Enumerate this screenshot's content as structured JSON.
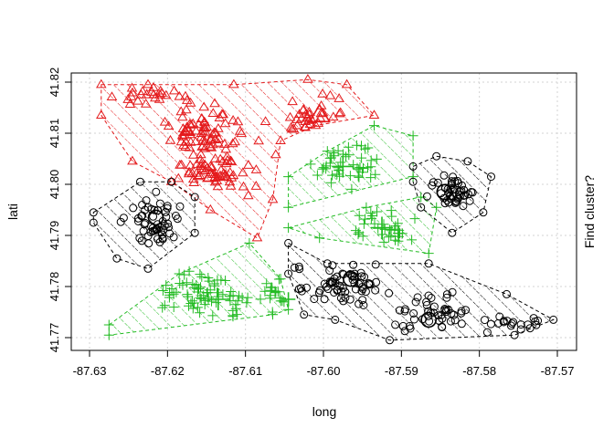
{
  "chart_data": {
    "type": "scatter",
    "title": "",
    "xlabel": "long",
    "ylabel": "lati",
    "right_label": "Find cluster?",
    "xlim": [
      -87.63,
      -87.57
    ],
    "ylim": [
      41.77,
      41.82
    ],
    "xticks": [
      -87.63,
      -87.62,
      -87.61,
      -87.6,
      -87.59,
      -87.58,
      -87.57
    ],
    "yticks": [
      41.77,
      41.78,
      41.79,
      41.8,
      41.81,
      41.82
    ],
    "xtick_labels": [
      "-87.63",
      "-87.62",
      "-87.61",
      "-87.60",
      "-87.59",
      "-87.58",
      "-87.57"
    ],
    "ytick_labels": [
      "41.77",
      "41.78",
      "41.79",
      "41.80",
      "41.81",
      "41.82"
    ],
    "grid": true,
    "legend": "none",
    "clusters": [
      {
        "marker": "triangle",
        "color": "#e41a1c",
        "hull": [
          [
            -87.6285,
            41.8195
          ],
          [
            -87.6225,
            41.8195
          ],
          [
            -87.6115,
            41.8195
          ],
          [
            -87.602,
            41.8205
          ],
          [
            -87.597,
            41.8195
          ],
          [
            -87.5935,
            41.8135
          ],
          [
            -87.601,
            41.8115
          ],
          [
            -87.6055,
            41.8085
          ],
          [
            -87.6065,
            41.797
          ],
          [
            -87.6085,
            41.7895
          ],
          [
            -87.6145,
            41.795
          ],
          [
            -87.6195,
            41.8005
          ],
          [
            -87.6245,
            41.8045
          ],
          [
            -87.6285,
            41.8135
          ]
        ],
        "centers": [
          [
            -87.6145,
            41.8015
          ],
          [
            -87.6175,
            41.8105
          ],
          [
            -87.6005,
            41.8135
          ]
        ],
        "center_sizes": [
          1.6,
          1.6,
          2.2
        ],
        "n_points": 190,
        "seed": 11,
        "blobs": [
          [
            -87.6155,
            41.8105,
            0.0048,
            0.0045,
            0.4
          ],
          [
            -87.6145,
            41.8025,
            0.0055,
            0.0035,
            0.3
          ],
          [
            -87.6015,
            41.8135,
            0.0045,
            0.0035,
            0.2
          ],
          [
            -87.6225,
            41.8175,
            0.004,
            0.002,
            0.1
          ]
        ]
      },
      {
        "marker": "plus",
        "color": "#22bb22",
        "hull": [
          [
            -87.6045,
            41.8015
          ],
          [
            -87.5995,
            41.8065
          ],
          [
            -87.5935,
            41.8115
          ],
          [
            -87.5885,
            41.8095
          ],
          [
            -87.5885,
            41.8015
          ],
          [
            -87.6045,
            41.7955
          ]
        ],
        "centers": [
          [
            -87.5975,
            41.8035
          ]
        ],
        "center_sizes": [
          2.2
        ],
        "n_points": 45,
        "seed": 23,
        "blobs": [
          [
            -87.5965,
            41.8035,
            0.0045,
            0.003,
            1.0
          ]
        ]
      },
      {
        "marker": "plus",
        "color": "#22bb22",
        "hull": [
          [
            -87.6045,
            41.7915
          ],
          [
            -87.5945,
            41.7955
          ],
          [
            -87.5875,
            41.7975
          ],
          [
            -87.5855,
            41.7955
          ],
          [
            -87.5865,
            41.7865
          ],
          [
            -87.6005,
            41.7895
          ]
        ],
        "centers": [
          [
            -87.5925,
            41.7915
          ]
        ],
        "center_sizes": [
          2.2
        ],
        "n_points": 35,
        "seed": 37,
        "blobs": [
          [
            -87.5925,
            41.7915,
            0.004,
            0.0025,
            1.0
          ]
        ]
      },
      {
        "marker": "plus",
        "color": "#22bb22",
        "hull": [
          [
            -87.6275,
            41.7725
          ],
          [
            -87.6185,
            41.7825
          ],
          [
            -87.6095,
            41.7885
          ],
          [
            -87.6055,
            41.7815
          ],
          [
            -87.6045,
            41.7755
          ],
          [
            -87.6065,
            41.7745
          ],
          [
            -87.6275,
            41.7705
          ]
        ],
        "centers": [
          [
            -87.6135,
            41.7775
          ],
          [
            -87.6045,
            41.7775
          ]
        ],
        "center_sizes": [
          2.2,
          1.4
        ],
        "n_points": 90,
        "seed": 5,
        "blobs": [
          [
            -87.6155,
            41.7785,
            0.006,
            0.0035,
            0.7
          ],
          [
            -87.6055,
            41.7785,
            0.0025,
            0.003,
            0.3
          ]
        ]
      },
      {
        "marker": "circle",
        "color": "#000000",
        "hull": [
          [
            -87.6295,
            41.7945
          ],
          [
            -87.6235,
            41.8005
          ],
          [
            -87.6195,
            41.8005
          ],
          [
            -87.6165,
            41.7975
          ],
          [
            -87.6165,
            41.7905
          ],
          [
            -87.6225,
            41.7835
          ],
          [
            -87.6265,
            41.7855
          ],
          [
            -87.6295,
            41.7925
          ]
        ],
        "centers": [
          [
            -87.6215,
            41.7935
          ]
        ],
        "center_sizes": [
          2.0
        ],
        "n_points": 55,
        "seed": 41,
        "blobs": [
          [
            -87.6215,
            41.7925,
            0.0032,
            0.0045,
            1.0
          ]
        ]
      },
      {
        "marker": "circle",
        "color": "#000000",
        "hull": [
          [
            -87.5885,
            41.8035
          ],
          [
            -87.5855,
            41.8055
          ],
          [
            -87.5815,
            41.8045
          ],
          [
            -87.5785,
            41.8015
          ],
          [
            -87.5795,
            41.7945
          ],
          [
            -87.5835,
            41.7905
          ],
          [
            -87.5875,
            41.7955
          ],
          [
            -87.5885,
            41.8005
          ]
        ],
        "centers": [
          [
            -87.5845,
            41.7985
          ]
        ],
        "center_sizes": [
          2.0
        ],
        "n_points": 45,
        "seed": 53,
        "blobs": [
          [
            -87.5835,
            41.7985,
            0.0022,
            0.003,
            1.0
          ]
        ]
      },
      {
        "marker": "circle",
        "color": "#000000",
        "hull": [
          [
            -87.6045,
            41.7885
          ],
          [
            -87.5995,
            41.7845
          ],
          [
            -87.5865,
            41.7845
          ],
          [
            -87.5765,
            41.7785
          ],
          [
            -87.5705,
            41.7735
          ],
          [
            -87.5755,
            41.7705
          ],
          [
            -87.5915,
            41.7695
          ],
          [
            -87.5985,
            41.7735
          ],
          [
            -87.6025,
            41.7745
          ],
          [
            -87.6045,
            41.7825
          ]
        ],
        "centers": [
          [
            -87.5965,
            41.7815
          ],
          [
            -87.5865,
            41.7735
          ]
        ],
        "center_sizes": [
          2.0,
          2.0
        ],
        "n_points": 130,
        "seed": 67,
        "blobs": [
          [
            -87.5975,
            41.7805,
            0.005,
            0.0035,
            0.5
          ],
          [
            -87.5865,
            41.7745,
            0.0045,
            0.0035,
            0.35
          ],
          [
            -87.5765,
            41.7725,
            0.004,
            0.0015,
            0.15
          ]
        ]
      }
    ]
  }
}
